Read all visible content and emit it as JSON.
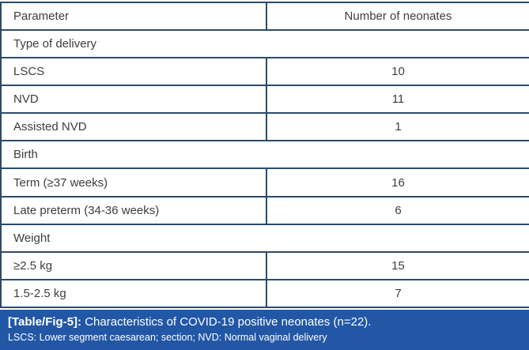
{
  "table": {
    "header": {
      "parameter": "Parameter",
      "count": "Number of neonates"
    },
    "sections": [
      {
        "title": "Type of delivery",
        "rows": [
          {
            "label": "LSCS",
            "value": "10"
          },
          {
            "label": "NVD",
            "value": "11"
          },
          {
            "label": "Assisted NVD",
            "value": "1"
          }
        ]
      },
      {
        "title": "Birth",
        "rows": [
          {
            "label": "Term (≥37 weeks)",
            "value": "16"
          },
          {
            "label": "Late preterm (34-36 weeks)",
            "value": "6"
          }
        ]
      },
      {
        "title": "Weight",
        "rows": [
          {
            "label": "≥2.5 kg",
            "value": "15"
          },
          {
            "label": "1.5-2.5 kg",
            "value": "7"
          }
        ]
      }
    ]
  },
  "caption": {
    "tag": "[Table/Fig-5]:",
    "text": " Characteristics of COVID-19 positive neonates (n=22).",
    "footnote": "LSCS: Lower segment caesarean; section; NVD: Normal vaginal delivery"
  },
  "colors": {
    "caption_bg": "#2257a6",
    "header_bg": "#ebedf4",
    "header_text": "#2c4f9f",
    "border": "#2c4a68"
  }
}
